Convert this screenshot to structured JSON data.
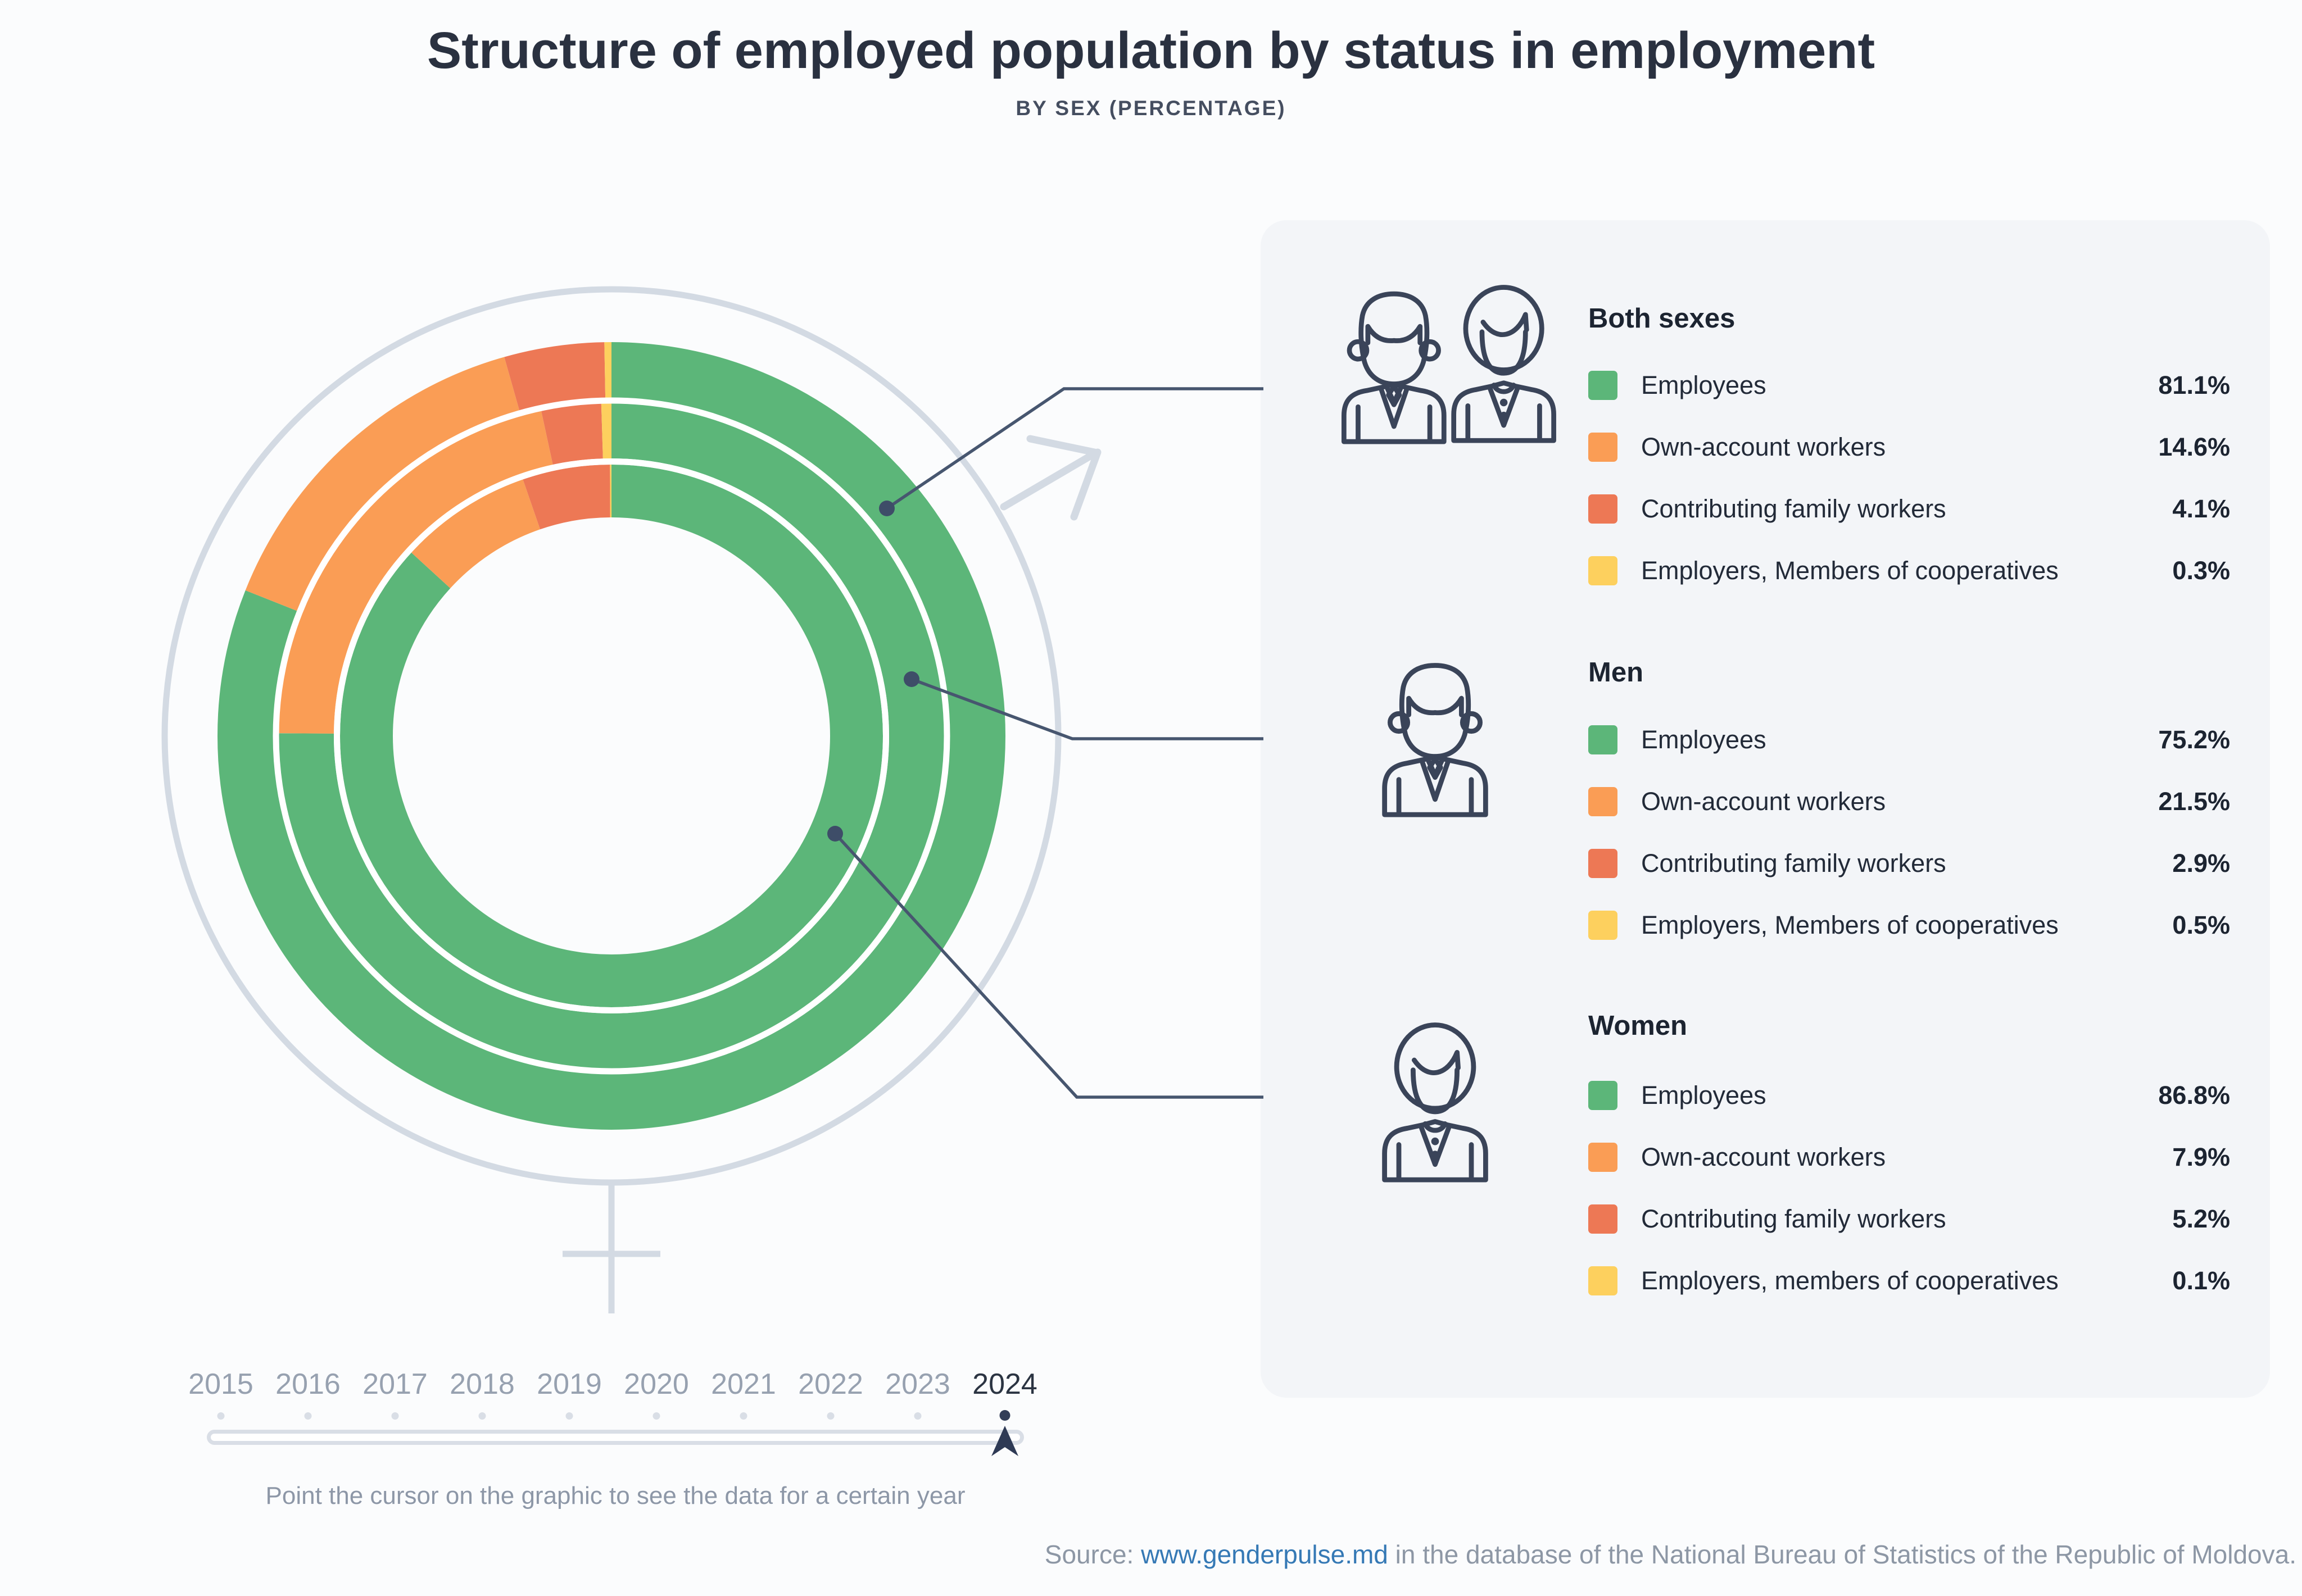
{
  "title": "Structure of employed population by status in employment",
  "subtitle": "BY SEX (PERCENTAGE)",
  "chart_data": {
    "type": "donut-multi-ring",
    "description": "Three concentric donut rings, outer to inner: Both sexes, Men, Women. Segments start at 12 o'clock and run clockwise.",
    "categories": [
      "Employees",
      "Own-account workers",
      "Contributing family workers",
      "Employers, Members of cooperatives"
    ],
    "colors": [
      "#5cb679",
      "#fa9d55",
      "#ed7855",
      "#fdd05e"
    ],
    "start_angle": "top",
    "direction": "clockwise",
    "rings_order": [
      "Both sexes",
      "Men",
      "Women"
    ],
    "series": [
      {
        "name": "Both sexes",
        "values": [
          81.1,
          14.6,
          4.1,
          0.3
        ]
      },
      {
        "name": "Men",
        "values": [
          75.2,
          21.5,
          2.9,
          0.5
        ]
      },
      {
        "name": "Women",
        "values": [
          86.8,
          7.9,
          5.2,
          0.1
        ]
      }
    ],
    "year_shown": "2024"
  },
  "legend": {
    "groups": [
      {
        "header": "Both sexes",
        "icon": "man-woman-icon",
        "rows": [
          {
            "label": "Employees",
            "value": "81.1%",
            "color": "#5cb679"
          },
          {
            "label": "Own-account workers",
            "value": "14.6%",
            "color": "#fa9d55"
          },
          {
            "label": "Contributing family workers",
            "value": "4.1%",
            "color": "#ed7855"
          },
          {
            "label": "Employers, Members of cooperatives",
            "value": "0.3%",
            "color": "#fdd05e"
          }
        ]
      },
      {
        "header": "Men",
        "icon": "man-icon",
        "rows": [
          {
            "label": "Employees",
            "value": "75.2%",
            "color": "#5cb679"
          },
          {
            "label": "Own-account workers",
            "value": "21.5%",
            "color": "#fa9d55"
          },
          {
            "label": "Contributing family workers",
            "value": "2.9%",
            "color": "#ed7855"
          },
          {
            "label": "Employers, Members of cooperatives",
            "value": "0.5%",
            "color": "#fdd05e"
          }
        ]
      },
      {
        "header": "Women",
        "icon": "woman-icon",
        "rows": [
          {
            "label": "Employees",
            "value": "86.8%",
            "color": "#5cb679"
          },
          {
            "label": "Own-account workers",
            "value": "7.9%",
            "color": "#fa9d55"
          },
          {
            "label": "Contributing family workers",
            "value": "5.2%",
            "color": "#ed7855"
          },
          {
            "label": "Employers, members of cooperatives",
            "value": "0.1%",
            "color": "#fdd05e"
          }
        ]
      }
    ]
  },
  "timeline": {
    "years": [
      "2015",
      "2016",
      "2017",
      "2018",
      "2019",
      "2020",
      "2021",
      "2022",
      "2023",
      "2024"
    ],
    "selected_year": "2024",
    "hint": "Point the cursor on the graphic to see the data for a certain year"
  },
  "source": {
    "prefix": "Source: ",
    "link": "www.genderpulse.md",
    "suffix": " in the database of the National Bureau of Statistics of the Republic of Moldova."
  }
}
